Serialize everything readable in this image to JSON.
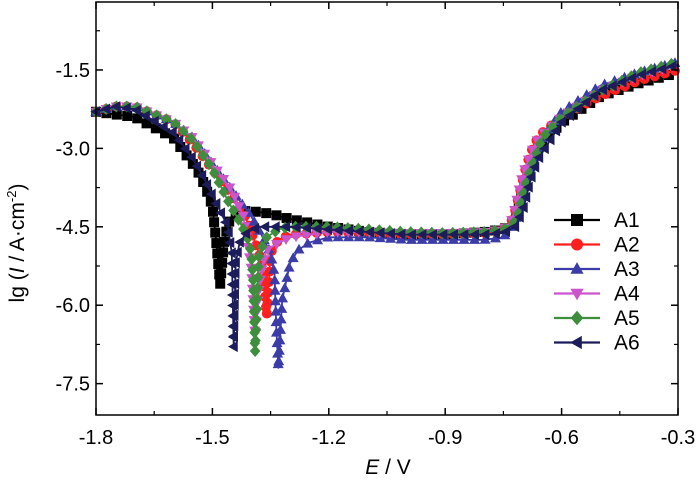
{
  "chart_data": {
    "type": "line",
    "title": "",
    "xlabel": {
      "symbol": "E",
      "unit": " / V"
    },
    "ylabel": {
      "prefix": "lg (",
      "symbol": "I",
      "unit": " / A·cm",
      "exponent": "-2",
      "suffix": ")"
    },
    "xlim": [
      -1.8,
      -0.3
    ],
    "ylim": [
      -8.1,
      -0.2
    ],
    "xticks": [
      -1.8,
      -1.5,
      -1.2,
      -0.9,
      -0.6,
      -0.3
    ],
    "xtick_labels": [
      "-1.8",
      "-1.5",
      "-1.2",
      "-0.9",
      "-0.6",
      "-0.3"
    ],
    "yticks": [
      -7.5,
      -6.0,
      -4.5,
      -3.0,
      -1.5
    ],
    "ytick_labels": [
      "-7.5",
      "-6.0",
      "-4.5",
      "-3.0",
      "-1.5"
    ],
    "grid": false,
    "legend_position": "right-middle",
    "series": [
      {
        "name": "A1",
        "color": "#000000",
        "marker": "square",
        "x": [
          -1.8,
          -1.7,
          -1.6,
          -1.54,
          -1.52,
          -1.5,
          -1.49,
          -1.48,
          -1.47,
          -1.46,
          -1.45,
          -1.43,
          -1.4,
          -1.35,
          -1.3,
          -1.2,
          -1.1,
          -1.0,
          -0.9,
          -0.8,
          -0.75,
          -0.73,
          -0.72,
          -0.71,
          -0.7,
          -0.69,
          -0.67,
          -0.65,
          -0.6,
          -0.5,
          -0.4,
          -0.3
        ],
        "y": [
          -2.3,
          -2.4,
          -2.8,
          -3.4,
          -3.7,
          -4.1,
          -4.8,
          -5.6,
          -4.8,
          -4.45,
          -4.3,
          -4.2,
          -4.2,
          -4.25,
          -4.35,
          -4.5,
          -4.6,
          -4.65,
          -4.65,
          -4.6,
          -4.55,
          -4.45,
          -4.3,
          -4.0,
          -3.7,
          -3.5,
          -3.2,
          -2.9,
          -2.5,
          -2.0,
          -1.75,
          -1.55
        ]
      },
      {
        "name": "A2",
        "color": "#ff1f1f",
        "marker": "circle",
        "x": [
          -1.8,
          -1.75,
          -1.7,
          -1.6,
          -1.55,
          -1.5,
          -1.45,
          -1.42,
          -1.4,
          -1.38,
          -1.37,
          -1.36,
          -1.35,
          -1.33,
          -1.3,
          -1.2,
          -1.1,
          -1.0,
          -0.9,
          -0.8,
          -0.75,
          -0.73,
          -0.72,
          -0.71,
          -0.7,
          -0.69,
          -0.68,
          -0.67,
          -0.65,
          -0.6,
          -0.5,
          -0.4,
          -0.3
        ],
        "y": [
          -2.3,
          -2.2,
          -2.2,
          -2.5,
          -2.9,
          -3.4,
          -3.9,
          -4.2,
          -4.6,
          -5.0,
          -5.4,
          -6.2,
          -5.0,
          -4.75,
          -4.65,
          -4.6,
          -4.62,
          -4.65,
          -4.65,
          -4.62,
          -4.55,
          -4.4,
          -4.2,
          -3.9,
          -3.6,
          -3.3,
          -3.1,
          -2.9,
          -2.7,
          -2.4,
          -2.0,
          -1.7,
          -1.5
        ]
      },
      {
        "name": "A3",
        "color": "#3c3ca8",
        "marker": "triangle-up",
        "x": [
          -1.8,
          -1.75,
          -1.7,
          -1.6,
          -1.55,
          -1.5,
          -1.45,
          -1.4,
          -1.37,
          -1.35,
          -1.34,
          -1.335,
          -1.33,
          -1.32,
          -1.3,
          -1.28,
          -1.25,
          -1.2,
          -1.1,
          -1.0,
          -0.9,
          -0.8,
          -0.75,
          -0.72,
          -0.7,
          -0.68,
          -0.65,
          -0.6,
          -0.5,
          -0.4,
          -0.3
        ],
        "y": [
          -2.3,
          -2.2,
          -2.2,
          -2.5,
          -2.8,
          -3.3,
          -3.8,
          -4.3,
          -4.7,
          -5.0,
          -5.4,
          -6.5,
          -7.2,
          -5.9,
          -5.2,
          -4.95,
          -4.8,
          -4.7,
          -4.7,
          -4.75,
          -4.75,
          -4.75,
          -4.7,
          -4.4,
          -3.8,
          -3.3,
          -2.8,
          -2.3,
          -1.8,
          -1.55,
          -1.35
        ]
      },
      {
        "name": "A4",
        "color": "#cc55cc",
        "marker": "triangle-down",
        "x": [
          -1.8,
          -1.75,
          -1.7,
          -1.6,
          -1.55,
          -1.5,
          -1.45,
          -1.42,
          -1.41,
          -1.4,
          -1.39,
          -1.38,
          -1.37,
          -1.36,
          -1.34,
          -1.3,
          -1.25,
          -1.2,
          -1.1,
          -1.0,
          -0.9,
          -0.8,
          -0.75,
          -0.73,
          -0.72,
          -0.71,
          -0.7,
          -0.69,
          -0.68,
          -0.66,
          -0.6,
          -0.5,
          -0.4,
          -0.3
        ],
        "y": [
          -2.3,
          -2.2,
          -2.2,
          -2.5,
          -2.8,
          -3.3,
          -3.8,
          -4.3,
          -4.8,
          -5.3,
          -6.6,
          -5.7,
          -5.2,
          -4.95,
          -4.85,
          -4.7,
          -4.65,
          -4.6,
          -4.6,
          -4.62,
          -4.62,
          -4.6,
          -4.55,
          -4.4,
          -4.15,
          -3.8,
          -3.5,
          -3.3,
          -3.1,
          -2.8,
          -2.4,
          -1.9,
          -1.6,
          -1.4
        ]
      },
      {
        "name": "A5",
        "color": "#3e8e3e",
        "marker": "diamond",
        "x": [
          -1.8,
          -1.75,
          -1.7,
          -1.6,
          -1.55,
          -1.5,
          -1.46,
          -1.43,
          -1.41,
          -1.4,
          -1.395,
          -1.39,
          -1.38,
          -1.36,
          -1.33,
          -1.3,
          -1.2,
          -1.1,
          -1.0,
          -0.9,
          -0.8,
          -0.75,
          -0.72,
          -0.71,
          -0.7,
          -0.69,
          -0.67,
          -0.65,
          -0.6,
          -0.5,
          -0.4,
          -0.3
        ],
        "y": [
          -2.3,
          -2.2,
          -2.2,
          -2.5,
          -2.85,
          -3.4,
          -4.0,
          -4.4,
          -4.7,
          -5.0,
          -5.5,
          -6.9,
          -5.0,
          -4.7,
          -4.55,
          -4.5,
          -4.5,
          -4.55,
          -4.6,
          -4.62,
          -4.6,
          -4.55,
          -4.4,
          -4.2,
          -3.9,
          -3.6,
          -3.2,
          -2.8,
          -2.4,
          -1.9,
          -1.55,
          -1.35
        ]
      },
      {
        "name": "A6",
        "color": "#1c1c5a",
        "marker": "triangle-left",
        "x": [
          -1.8,
          -1.75,
          -1.7,
          -1.6,
          -1.55,
          -1.52,
          -1.5,
          -1.48,
          -1.46,
          -1.45,
          -1.445,
          -1.44,
          -1.43,
          -1.41,
          -1.38,
          -1.33,
          -1.3,
          -1.2,
          -1.1,
          -1.0,
          -0.9,
          -0.8,
          -0.75,
          -0.72,
          -0.7,
          -0.69,
          -0.68,
          -0.66,
          -0.6,
          -0.5,
          -0.4,
          -0.3
        ],
        "y": [
          -2.3,
          -2.2,
          -2.25,
          -2.7,
          -3.2,
          -3.6,
          -3.9,
          -4.2,
          -4.5,
          -5.0,
          -6.8,
          -5.2,
          -4.8,
          -4.6,
          -4.5,
          -4.5,
          -4.5,
          -4.55,
          -4.6,
          -4.65,
          -4.65,
          -4.65,
          -4.62,
          -4.5,
          -4.2,
          -3.9,
          -3.6,
          -3.2,
          -2.5,
          -1.9,
          -1.6,
          -1.4
        ]
      }
    ]
  }
}
